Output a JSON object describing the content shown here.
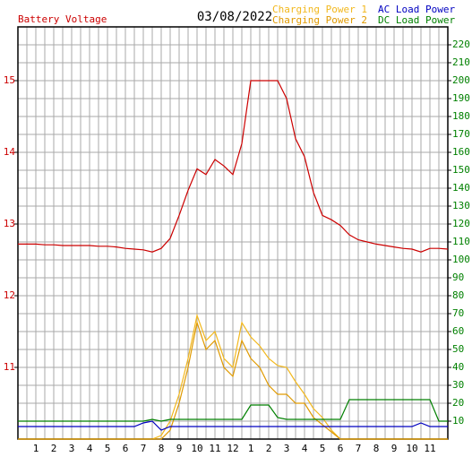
{
  "chart_data": {
    "type": "line",
    "title": "03/08/2022",
    "x": [
      0,
      0.5,
      1,
      1.5,
      2,
      2.5,
      3,
      3.5,
      4,
      4.5,
      5,
      5.5,
      6,
      6.5,
      7,
      7.5,
      8,
      8.5,
      9,
      9.5,
      10,
      10.5,
      11,
      11.5,
      12,
      12.5,
      13,
      13.5,
      14,
      14.5,
      15,
      15.5,
      16,
      16.5,
      17,
      17.5,
      18,
      18.5,
      19,
      19.5,
      20,
      20.5,
      21,
      21.5,
      22,
      22.5,
      23,
      23.5,
      24
    ],
    "xlim": [
      0,
      24
    ],
    "xticks": [
      1,
      2,
      3,
      4,
      5,
      6,
      7,
      8,
      9,
      10,
      11,
      12,
      {
        "value": 13,
        "label": "1"
      },
      {
        "value": 14,
        "label": "2"
      },
      {
        "value": 15,
        "label": "3"
      },
      {
        "value": 16,
        "label": "4"
      },
      {
        "value": 17,
        "label": "5"
      },
      {
        "value": 18,
        "label": "6"
      },
      {
        "value": 19,
        "label": "7"
      },
      {
        "value": 20,
        "label": "8"
      },
      {
        "value": 21,
        "label": "9"
      },
      {
        "value": 22,
        "label": "10"
      },
      {
        "value": 23,
        "label": "11"
      }
    ],
    "ylim": [
      10,
      15.75
    ],
    "yticks": [
      11,
      12,
      13,
      14,
      15
    ],
    "ytick_color": "#cc0000",
    "y2lim": [
      0,
      230
    ],
    "y2ticks": [
      10,
      20,
      30,
      40,
      50,
      60,
      70,
      80,
      90,
      100,
      110,
      120,
      130,
      140,
      150,
      160,
      170,
      180,
      190,
      200,
      210,
      220
    ],
    "y2tick_color": "#008000",
    "grid": true,
    "series": [
      {
        "name": "Battery Voltage",
        "color": "#cc0000",
        "values": [
          12.72,
          12.72,
          12.72,
          12.71,
          12.71,
          12.7,
          12.7,
          12.7,
          12.7,
          12.69,
          12.69,
          12.68,
          12.66,
          12.65,
          12.64,
          12.61,
          12.66,
          12.8,
          13.12,
          13.47,
          13.77,
          13.69,
          13.9,
          13.81,
          13.69,
          14.12,
          15.0,
          15.0,
          15.0,
          15.0,
          14.75,
          14.19,
          13.94,
          13.44,
          13.12,
          13.06,
          12.98,
          12.85,
          12.78,
          12.75,
          12.72,
          12.7,
          12.68,
          12.66,
          12.65,
          12.61,
          12.66,
          12.66,
          12.65
        ]
      },
      {
        "name": "Charging Power 1",
        "color": "#f2b81e",
        "axis": "y2",
        "values": [
          0,
          0,
          0,
          0,
          0,
          0,
          0,
          0,
          0,
          0,
          0,
          0,
          0,
          0,
          0,
          0,
          2,
          10,
          25,
          45,
          69,
          55,
          60,
          45,
          40,
          65,
          57,
          52,
          45,
          41,
          40,
          32,
          25,
          17,
          12,
          5,
          0,
          0,
          0,
          0,
          0,
          0,
          0,
          0,
          0,
          0,
          0,
          0,
          0
        ]
      },
      {
        "name": "Charging Power 2",
        "color": "#e09a00",
        "axis": "y2",
        "values": [
          0,
          0,
          0,
          0,
          0,
          0,
          0,
          0,
          0,
          0,
          0,
          0,
          0,
          0,
          0,
          0,
          0,
          5,
          20,
          40,
          65,
          50,
          55,
          40,
          35,
          55,
          45,
          40,
          30,
          25,
          25,
          20,
          20,
          12,
          8,
          4,
          0,
          0,
          0,
          0,
          0,
          0,
          0,
          0,
          0,
          0,
          0,
          0,
          0
        ]
      },
      {
        "name": "AC Load Power",
        "color": "#0000c0",
        "axis": "y2",
        "values": [
          7,
          7,
          7,
          7,
          7,
          7,
          7,
          7,
          7,
          7,
          7,
          7,
          7,
          7,
          9,
          10,
          5,
          7,
          7,
          7,
          7,
          7,
          7,
          7,
          7,
          7,
          7,
          7,
          7,
          7,
          7,
          7,
          7,
          7,
          7,
          7,
          7,
          7,
          7,
          7,
          7,
          7,
          7,
          7,
          7,
          9,
          7,
          7,
          7
        ]
      },
      {
        "name": "DC Load Power",
        "color": "#008000",
        "axis": "y2",
        "values": [
          10,
          10,
          10,
          10,
          10,
          10,
          10,
          10,
          10,
          10,
          10,
          10,
          10,
          10,
          10,
          11,
          10,
          11,
          11,
          11,
          11,
          11,
          11,
          11,
          11,
          11,
          19,
          19,
          19,
          12,
          11,
          11,
          11,
          11,
          11,
          11,
          11,
          22,
          22,
          22,
          22,
          22,
          22,
          22,
          22,
          22,
          22,
          10,
          10
        ]
      }
    ]
  }
}
